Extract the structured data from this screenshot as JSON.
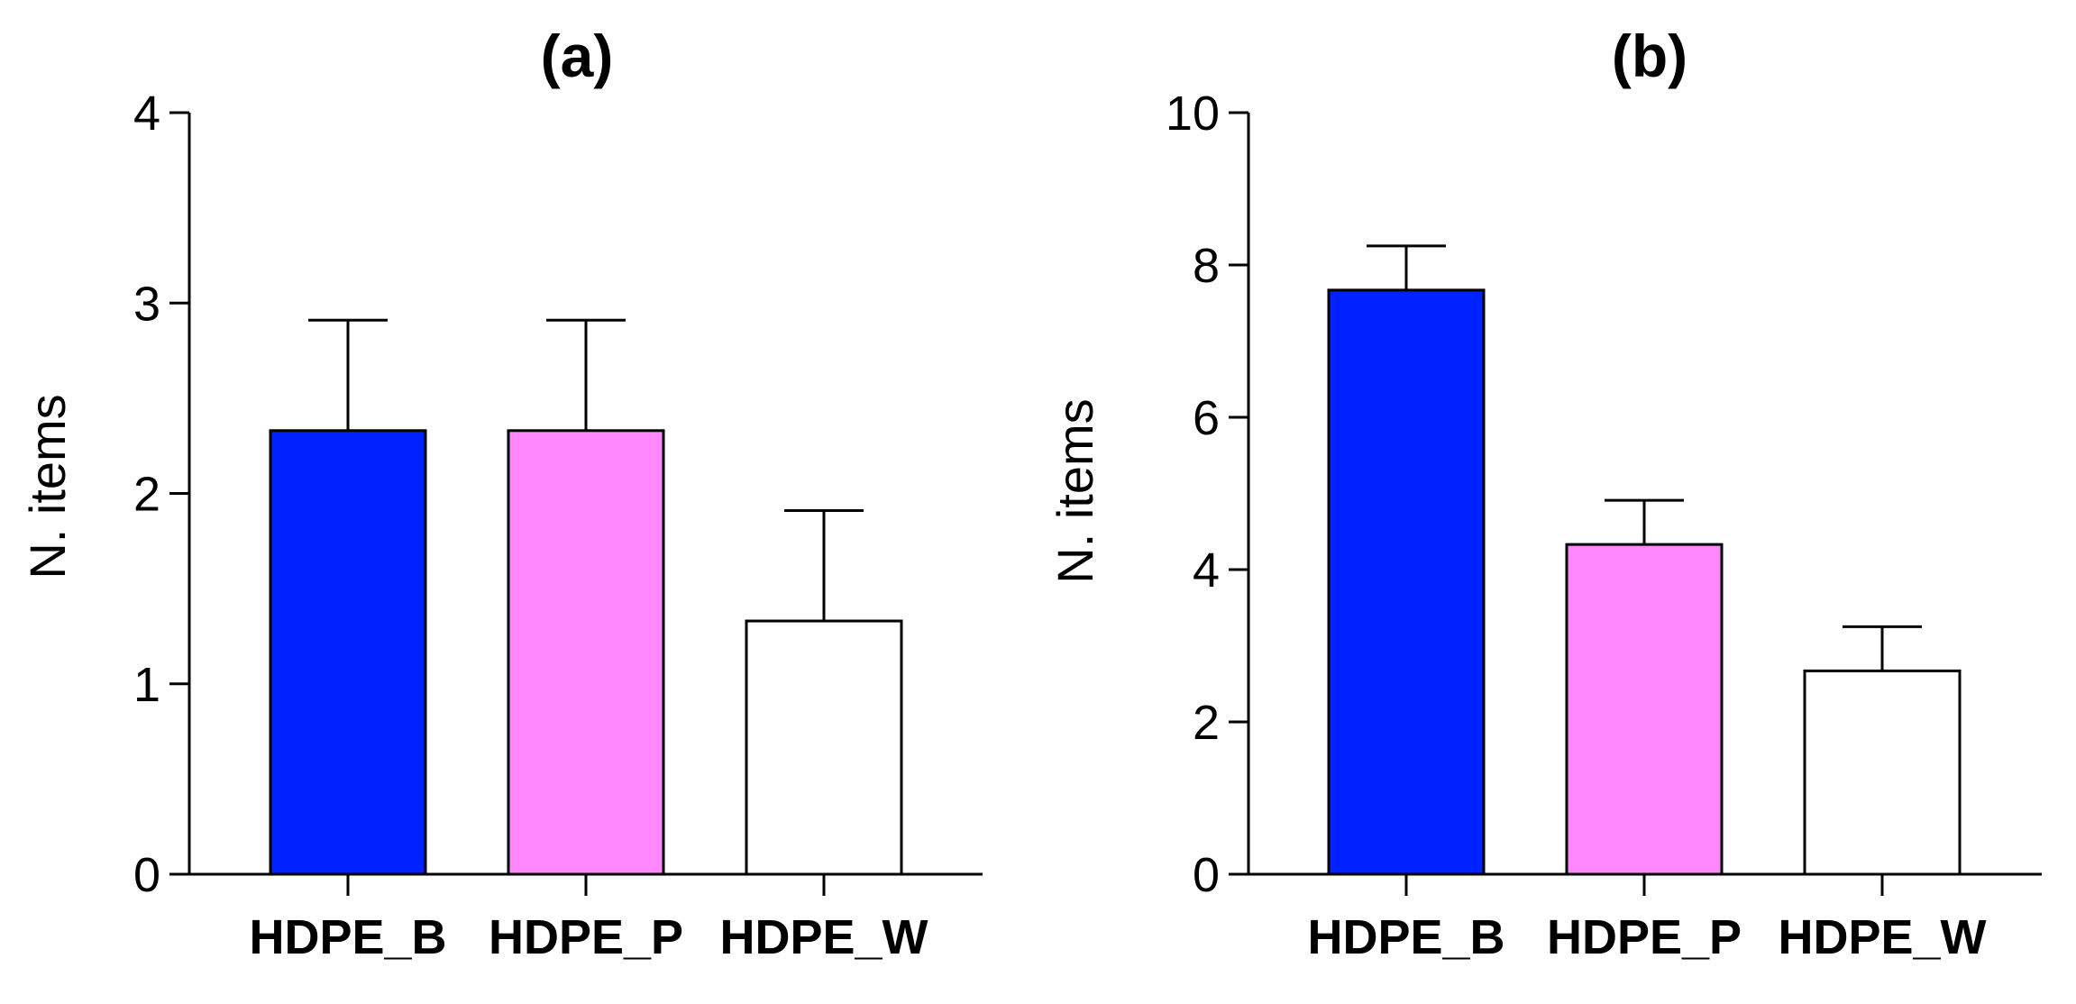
{
  "chart_data": [
    {
      "type": "bar",
      "title": "(a)",
      "xlabel": "",
      "ylabel": "N. items",
      "categories": [
        "HDPE_B",
        "HDPE_P",
        "HDPE_W"
      ],
      "values": [
        2.33,
        2.33,
        1.33
      ],
      "errors": [
        0.58,
        0.58,
        0.58
      ],
      "colors": [
        "#0022ff",
        "#ff88ff",
        "#ffffff"
      ],
      "ylim": [
        0,
        4
      ],
      "yticks": [
        0,
        1,
        2,
        3,
        4
      ],
      "grid": false
    },
    {
      "type": "bar",
      "title": "(b)",
      "xlabel": "",
      "ylabel": "N. items",
      "categories": [
        "HDPE_B",
        "HDPE_P",
        "HDPE_W"
      ],
      "values": [
        7.67,
        4.33,
        2.67
      ],
      "errors": [
        0.58,
        0.58,
        0.58
      ],
      "colors": [
        "#0022ff",
        "#ff88ff",
        "#ffffff"
      ],
      "ylim": [
        0,
        10
      ],
      "yticks": [
        0,
        2,
        4,
        6,
        8,
        10
      ],
      "grid": false
    }
  ]
}
